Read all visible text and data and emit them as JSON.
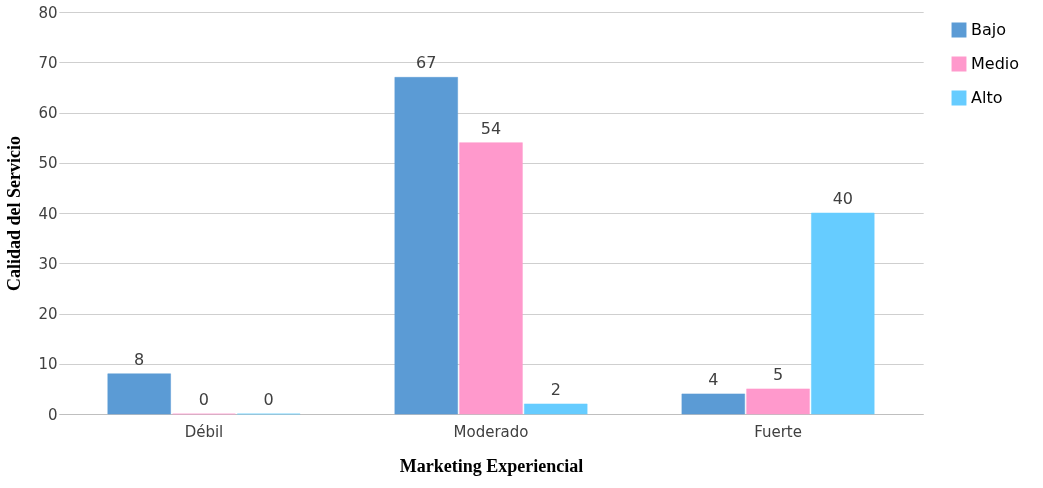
{
  "chart_data": {
    "type": "bar",
    "xlabel": "Marketing Experiencial",
    "ylabel": "Calidad del Servicio",
    "categories": [
      "Débil",
      "Moderado",
      "Fuerte"
    ],
    "series": [
      {
        "name": "Bajo",
        "color": "#5b9bd5",
        "values": [
          8,
          67,
          4
        ]
      },
      {
        "name": "Medio",
        "color": "#ff99cc",
        "values": [
          0,
          54,
          5
        ]
      },
      {
        "name": "Alto",
        "color": "#66ccff",
        "values": [
          0,
          2,
          40
        ]
      }
    ],
    "ylim": [
      0,
      80
    ],
    "yticks": [
      0,
      10,
      20,
      30,
      40,
      50,
      60,
      70,
      80
    ],
    "grid": "y",
    "legend": "right",
    "data_labels": true
  }
}
